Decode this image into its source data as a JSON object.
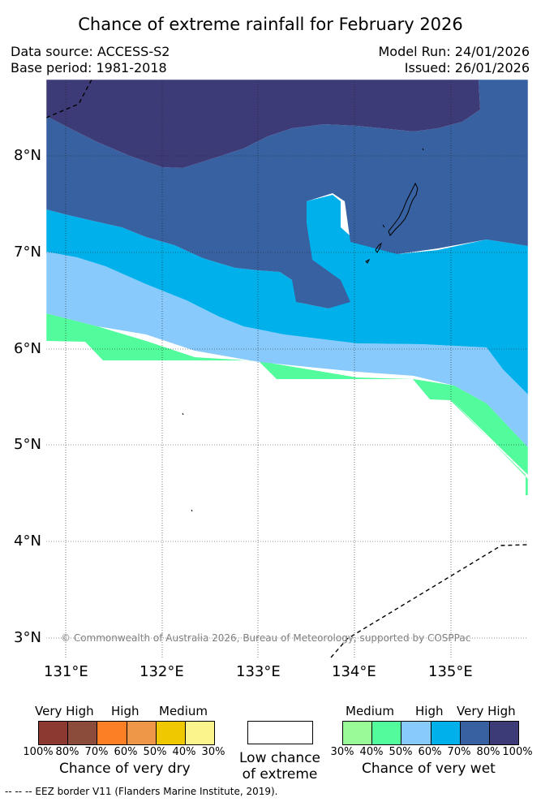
{
  "title": "Chance of extreme rainfall for February 2026",
  "meta": {
    "data_source": "Data source: ACCESS-S2",
    "base_period": "Base period: 1981-2018",
    "model_run": "Model Run: 24/01/2026",
    "issued": "Issued: 26/01/2026"
  },
  "map": {
    "lat_labels": [
      "8°N",
      "7°N",
      "6°N",
      "5°N",
      "4°N",
      "3°N"
    ],
    "lon_labels": [
      "131°E",
      "132°E",
      "133°E",
      "134°E",
      "135°E"
    ],
    "copyright": "© Commonwealth of Australia 2026, Bureau of Meteorology, supported by COSPPac",
    "colors": {
      "very_high_wet": "#3d3b77",
      "high_wet_80": "#3761a0",
      "high_wet_70": "#00b0eb",
      "medium_wet_60": "#87cafb",
      "medium_wet_50": "#52fb9b",
      "low": "#ffffff"
    }
  },
  "legend": {
    "dry": {
      "categories": [
        "Very High",
        "High",
        "Medium"
      ],
      "ticks": [
        "100%",
        "80%",
        "70%",
        "60%",
        "50%",
        "40%",
        "30%"
      ],
      "colors": [
        "#8c3932",
        "#8b4c3b",
        "#fc7f26",
        "#ee9749",
        "#f0c800",
        "#fbf38c"
      ],
      "title": "Chance of very dry"
    },
    "low": {
      "line1": "Low chance",
      "line2": "of extreme"
    },
    "wet": {
      "categories": [
        "Medium",
        "High",
        "Very High"
      ],
      "ticks": [
        "30%",
        "40%",
        "50%",
        "60%",
        "70%",
        "80%",
        "100%"
      ],
      "colors": [
        "#98fb98",
        "#52fb9b",
        "#87cafb",
        "#00b0eb",
        "#3761a0",
        "#3d3b77"
      ],
      "title": "Chance of very wet"
    }
  },
  "footer": {
    "eez": "--  --  -- EEZ border V11 (Flanders Marine Institute, 2019)."
  }
}
